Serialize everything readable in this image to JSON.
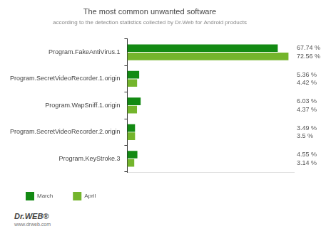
{
  "chart_data": {
    "type": "bar",
    "orientation": "horizontal",
    "title": "The most common unwanted software",
    "subtitle": "according to the detection statistics collected by Dr.Web for Android products",
    "categories": [
      "Program.FakeAntiVirus.1",
      "Program.SecretVideoRecorder.1.origin",
      "Program.WapSniff.1.origin",
      "Program.SecretVideoRecorder.2.origin",
      "Program.KeyStroke.3"
    ],
    "series": [
      {
        "name": "March",
        "color": "#138a13",
        "values": [
          67.74,
          5.36,
          6.03,
          3.49,
          4.55
        ],
        "value_labels": [
          "67.74 %",
          "5.36 %",
          "6.03 %",
          "3.49 %",
          "4.55 %"
        ]
      },
      {
        "name": "April",
        "color": "#74b52c",
        "values": [
          72.56,
          4.42,
          4.37,
          3.5,
          3.14
        ],
        "value_labels": [
          "72.56 %",
          "4.42 %",
          "4.37 %",
          "3.5 %",
          "3.14 %"
        ]
      }
    ],
    "xlim": [
      0,
      75
    ],
    "data_labels": true,
    "tick_labels": "y",
    "grid": false,
    "legend": "bottom-left",
    "annotations": [
      "Dr.WEB®",
      "www.drweb.com"
    ]
  }
}
